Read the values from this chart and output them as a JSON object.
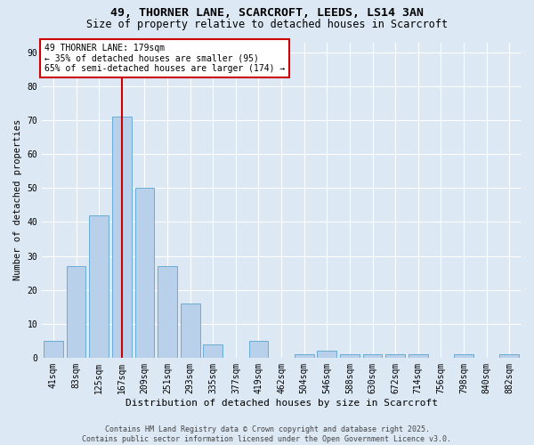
{
  "title_line1": "49, THORNER LANE, SCARCROFT, LEEDS, LS14 3AN",
  "title_line2": "Size of property relative to detached houses in Scarcroft",
  "xlabel": "Distribution of detached houses by size in Scarcroft",
  "ylabel": "Number of detached properties",
  "categories": [
    "41sqm",
    "83sqm",
    "125sqm",
    "167sqm",
    "209sqm",
    "251sqm",
    "293sqm",
    "335sqm",
    "377sqm",
    "419sqm",
    "462sqm",
    "504sqm",
    "546sqm",
    "588sqm",
    "630sqm",
    "672sqm",
    "714sqm",
    "756sqm",
    "798sqm",
    "840sqm",
    "882sqm"
  ],
  "values": [
    5,
    27,
    42,
    71,
    50,
    27,
    16,
    4,
    0,
    5,
    0,
    1,
    2,
    1,
    1,
    1,
    1,
    0,
    1,
    0,
    1
  ],
  "bar_color": "#b8d0ea",
  "bar_edgecolor": "#6aacd6",
  "annotation_line1": "49 THORNER LANE: 179sqm",
  "annotation_line2": "← 35% of detached houses are smaller (95)",
  "annotation_line3": "65% of semi-detached houses are larger (174) →",
  "annotation_box_facecolor": "#ffffff",
  "annotation_box_edgecolor": "#cc0000",
  "vline_color": "#cc0000",
  "ylim_max": 93,
  "yticks": [
    0,
    10,
    20,
    30,
    40,
    50,
    60,
    70,
    80,
    90
  ],
  "footer_line1": "Contains HM Land Registry data © Crown copyright and database right 2025.",
  "footer_line2": "Contains public sector information licensed under the Open Government Licence v3.0.",
  "bg_color": "#dce8f4",
  "plot_bg_color": "#dce8f4",
  "grid_color": "#ffffff",
  "title_fontsize": 9.5,
  "subtitle_fontsize": 8.5,
  "tick_fontsize": 7,
  "ylabel_fontsize": 7.5,
  "xlabel_fontsize": 8,
  "ann_fontsize": 7,
  "footer_fontsize": 6
}
